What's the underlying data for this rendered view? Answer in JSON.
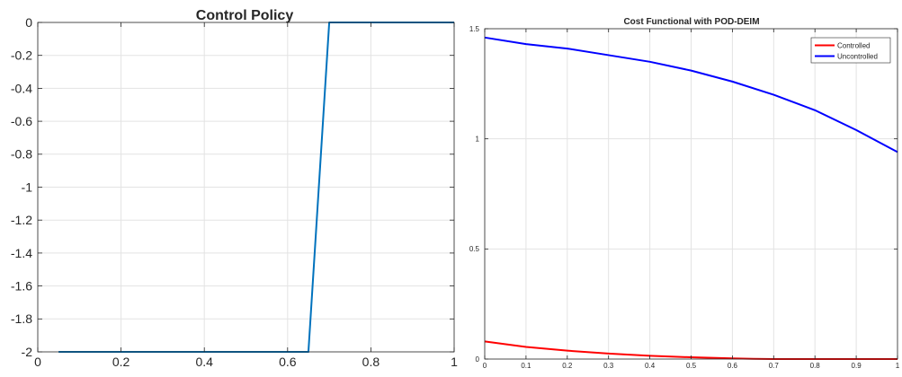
{
  "chart_data": [
    {
      "type": "line",
      "title": "Control Policy",
      "xlabel": "",
      "ylabel": "",
      "xlim": [
        0,
        1
      ],
      "ylim": [
        -2,
        0
      ],
      "xticks": [
        0,
        0.2,
        0.4,
        0.6,
        0.8,
        1
      ],
      "xtick_labels": [
        "0",
        "0.2",
        "0.4",
        "0.6",
        "0.8",
        "1"
      ],
      "yticks": [
        0,
        -0.2,
        -0.4,
        -0.6,
        -0.8,
        -1,
        -1.2,
        -1.4,
        -1.6,
        -1.8,
        -2
      ],
      "ytick_labels": [
        "0",
        "-0.2",
        "-0.4",
        "-0.6",
        "-0.8",
        "-1",
        "-1.2",
        "-1.4",
        "-1.6",
        "-1.8",
        "-2"
      ],
      "grid": true,
      "series": [
        {
          "color": "#0072bd",
          "x": [
            0.05,
            0.1,
            0.15,
            0.2,
            0.25,
            0.3,
            0.35,
            0.4,
            0.45,
            0.5,
            0.55,
            0.6,
            0.65,
            0.7,
            0.75,
            0.8,
            0.85,
            0.9,
            0.95,
            1.0
          ],
          "y": [
            -2,
            -2,
            -2,
            -2,
            -2,
            -2,
            -2,
            -2,
            -2,
            -2,
            -2,
            -2,
            -2,
            0,
            0,
            0,
            0,
            0,
            0,
            0
          ]
        }
      ]
    },
    {
      "type": "line",
      "title": "Cost Functional with POD-DEIM",
      "xlabel": "",
      "ylabel": "",
      "xlim": [
        0,
        1
      ],
      "ylim": [
        0,
        1.5
      ],
      "xticks": [
        0,
        0.1,
        0.2,
        0.3,
        0.4,
        0.5,
        0.6,
        0.7,
        0.8,
        0.9,
        1
      ],
      "xtick_labels": [
        "0",
        "0.1",
        "0.2",
        "0.3",
        "0.4",
        "0.5",
        "0.6",
        "0.7",
        "0.8",
        "0.9",
        "1"
      ],
      "yticks": [
        0,
        0.5,
        1,
        1.5
      ],
      "ytick_labels": [
        "0",
        "0.5",
        "1",
        "1.5"
      ],
      "grid": true,
      "legend_position": "top-right",
      "series": [
        {
          "name": "Controlled",
          "color": "#ff0000",
          "x": [
            0,
            0.1,
            0.2,
            0.3,
            0.4,
            0.5,
            0.6,
            0.65,
            0.7,
            0.8,
            0.9,
            1.0
          ],
          "y": [
            0.08,
            0.055,
            0.038,
            0.025,
            0.015,
            0.008,
            0.003,
            0.001,
            0,
            0,
            0,
            0
          ]
        },
        {
          "name": "Uncontrolled",
          "color": "#0000ff",
          "x": [
            0,
            0.1,
            0.2,
            0.3,
            0.4,
            0.5,
            0.6,
            0.7,
            0.8,
            0.9,
            1.0
          ],
          "y": [
            1.46,
            1.43,
            1.41,
            1.38,
            1.35,
            1.31,
            1.26,
            1.2,
            1.13,
            1.04,
            0.94
          ]
        }
      ]
    }
  ]
}
